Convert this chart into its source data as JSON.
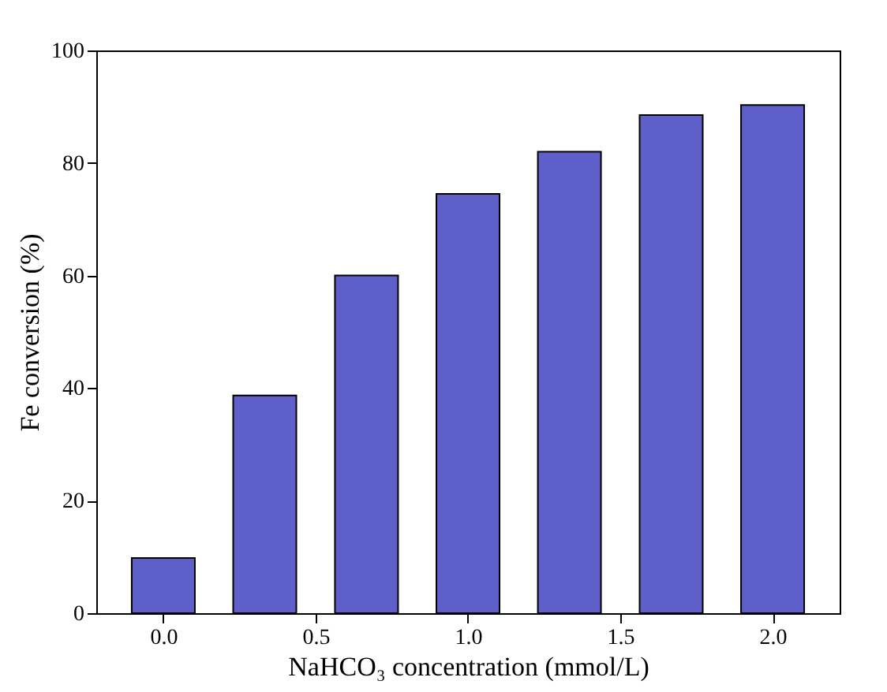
{
  "chart_data": {
    "type": "bar",
    "xlabel": "NaHCO₃ concentration (mmol/L)",
    "ylabel": "Fe conversion (%)",
    "x": [
      0,
      0.333,
      0.667,
      1.0,
      1.333,
      1.667,
      2.0
    ],
    "values": [
      9.8,
      38.7,
      60,
      74.5,
      82,
      88.5,
      90.3
    ],
    "color": "#2a2ab8",
    "xlim": [
      -0.22,
      2.22
    ],
    "xticks": [
      {
        "value": 0,
        "label": "0.0"
      },
      {
        "value": 0.5,
        "label": "0.5"
      },
      {
        "value": 1,
        "label": "1.0"
      },
      {
        "value": 1.5,
        "label": "1.5"
      },
      {
        "value": 2,
        "label": "2.0"
      }
    ],
    "ylim": [
      0,
      100
    ],
    "yticks": [
      0,
      20,
      40,
      60,
      80,
      100
    ],
    "grid": false
  }
}
